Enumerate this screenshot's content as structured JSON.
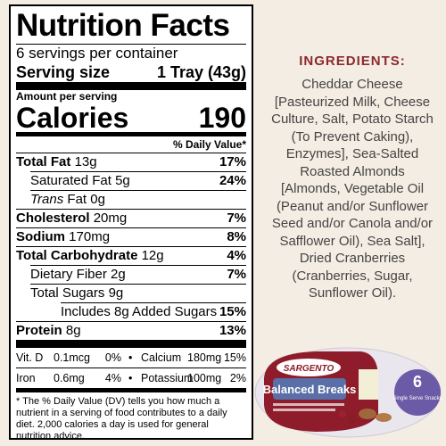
{
  "label": {
    "title": "Nutrition Facts",
    "servings": "6 servings per container",
    "serving_size_label": "Serving size",
    "serving_size": "1 Tray (43g)",
    "amount_per_serving": "Amount per serving",
    "calories_label": "Calories",
    "calories": "190",
    "dv_header": "% Daily Value*",
    "rows": [
      {
        "name": "Total Fat",
        "amount": "13g",
        "dv": "17%",
        "style": "main"
      },
      {
        "name": "Saturated Fat",
        "amount": "5g",
        "dv": "24%",
        "style": "sub"
      },
      {
        "prefix": "Trans",
        "name": "Fat",
        "amount": "0g",
        "style": "sub"
      },
      {
        "name": "Cholesterol",
        "amount": "20mg",
        "dv": "7%",
        "style": "main"
      },
      {
        "name": "Sodium",
        "amount": "170mg",
        "dv": "8%",
        "style": "main"
      },
      {
        "name": "Total Carbohydrate",
        "amount": "12g",
        "dv": "4%",
        "style": "main"
      },
      {
        "name": "Dietary Fiber",
        "amount": "2g",
        "dv": "7%",
        "style": "sub"
      },
      {
        "name": "Total Sugars",
        "amount": "9g",
        "style": "sub"
      },
      {
        "name": "Includes 8g Added Sugars",
        "dv": "15%",
        "style": "subsub"
      },
      {
        "name": "Protein",
        "amount": "8g",
        "dv": "13%",
        "style": "main"
      }
    ],
    "vitamins": [
      [
        {
          "name": "Vit. D",
          "amount": "0.1mcg",
          "dv": "0%"
        },
        {
          "name": "Calcium",
          "amount": "180mg",
          "dv": "15%"
        }
      ],
      [
        {
          "name": "Iron",
          "amount": "0.6mg",
          "dv": "4%"
        },
        {
          "name": "Potassium",
          "amount": "100mg",
          "dv": "2%"
        }
      ]
    ],
    "footnote": "* The % Daily Value (DV) tells you how much a nutrient in a serving of food contributes to a daily diet. 2,000 calories a day is used for general nutrition advice."
  },
  "ingredients": {
    "title": "INGREDIENTS:",
    "lines": [
      "Cheddar Cheese",
      "[Pasteurized Milk, Cheese",
      "Culture, Salt, Potato Starch",
      "(To Prevent Caking),",
      "Enzymes],  Sea-Salted",
      "Roasted Almonds",
      "[Almonds, Vegetable Oil",
      "(Peanut and/or Sunflower",
      "Seed and/or Canola and/or",
      "Safflower Oil), Sea Salt],",
      "Dried Cranberries",
      "(Cranberries, Sugar,",
      "Sunflower Oil)."
    ]
  },
  "product": {
    "brand": "SARGENTO",
    "name": "Balanced Breaks",
    "count": "6",
    "count_label": "Single Serve Snacks"
  }
}
